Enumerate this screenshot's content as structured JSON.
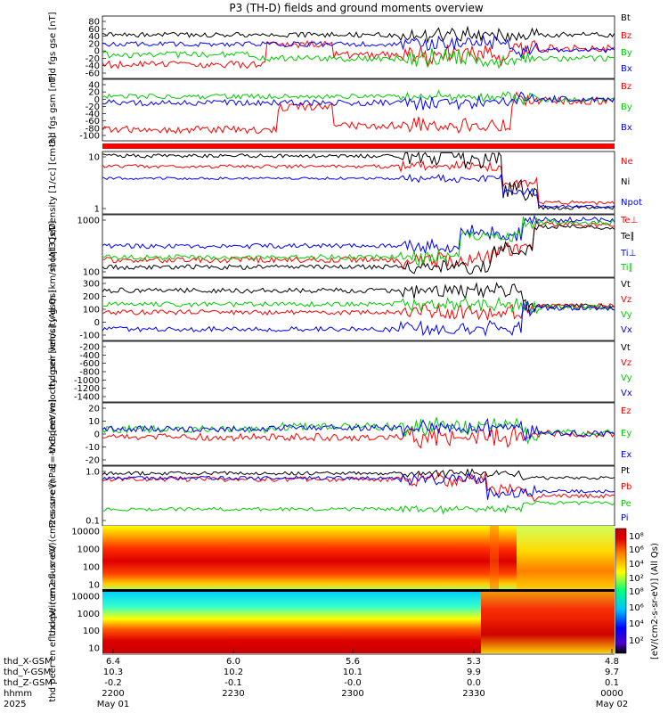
{
  "title": "P3 (TH-D) fields and ground moments overview",
  "chart_data": [
    {
      "id": "fgs_gse",
      "type": "line",
      "ylabel": "thd fgs gse [nT]",
      "ylim": [
        -65,
        85
      ],
      "yticks": [
        "80",
        "60",
        "40",
        "20",
        "0",
        "-20",
        "-40",
        "-60"
      ],
      "series": [
        {
          "name": "Bt",
          "color": "#000000"
        },
        {
          "name": "Bz",
          "color": "#ff0000"
        },
        {
          "name": "By",
          "color": "#00cc00"
        },
        {
          "name": "Bx",
          "color": "#0000ff"
        }
      ]
    },
    {
      "id": "fgs_gsm",
      "type": "line",
      "ylabel": "thd fgs gsm [nT]",
      "ylim": [
        -115,
        45
      ],
      "yticks": [
        "40",
        "20",
        "0",
        "-20",
        "-40",
        "-60",
        "-80",
        "-100"
      ],
      "series": [
        {
          "name": "Bz",
          "color": "#ff0000"
        },
        {
          "name": "By",
          "color": "#00cc00"
        },
        {
          "name": "Bx",
          "color": "#0000ff"
        }
      ]
    },
    {
      "id": "density",
      "type": "line",
      "ylabel": "Density [1/cc] [cm-3]",
      "yscale": "log",
      "ylim": [
        0.25,
        35
      ],
      "yticks": [
        "10",
        "1"
      ],
      "series": [
        {
          "name": "Ne",
          "color": "#ff0000"
        },
        {
          "name": "Ni",
          "color": "#000000"
        },
        {
          "name": "Npot",
          "color": "#0000ff"
        }
      ]
    },
    {
      "id": "temperature",
      "type": "line",
      "ylabel": "moqt3 [eV]",
      "yscale": "log",
      "ylim": [
        60,
        4000
      ],
      "yticks": [
        "1000",
        "100"
      ],
      "series": [
        {
          "name": "Te⊥",
          "color": "#ff0000"
        },
        {
          "name": "Te∥",
          "color": "#000000"
        },
        {
          "name": "Ti⊥",
          "color": "#0000ff"
        },
        {
          "name": "Ti∥",
          "color": "#00cc00"
        }
      ]
    },
    {
      "id": "peir_vel",
      "type": "line",
      "ylabel": "thd peir velocity gsm [km/s] (All Qs)",
      "ylim": [
        -160,
        320
      ],
      "yticks": [
        "300",
        "200",
        "100",
        "0",
        "-100"
      ],
      "series": [
        {
          "name": "Vt",
          "color": "#000000"
        },
        {
          "name": "Vz",
          "color": "#ff0000"
        },
        {
          "name": "Vy",
          "color": "#00cc00"
        },
        {
          "name": "Vx",
          "color": "#0000ff"
        }
      ]
    },
    {
      "id": "peer_vel",
      "type": "line",
      "ylabel": "thd peer velocity gsm [km/s] (All Qs)",
      "ylim": [
        -1480,
        -120
      ],
      "yticks": [
        "-200",
        "-400",
        "-600",
        "-800",
        "-1000",
        "-1200",
        "-1400"
      ],
      "series": [
        {
          "name": "Vt",
          "color": "#000000"
        },
        {
          "name": "Vz",
          "color": "#ff0000"
        },
        {
          "name": "Vy",
          "color": "#00cc00"
        },
        {
          "name": "Vx",
          "color": "#0000ff"
        }
      ]
    },
    {
      "id": "efield",
      "type": "line",
      "ylabel": "E=-VxB [mV/m]",
      "ylim": [
        -24,
        24
      ],
      "yticks": [
        "20",
        "10",
        "0",
        "-10",
        "-20"
      ],
      "series": [
        {
          "name": "Ez",
          "color": "#ff0000"
        },
        {
          "name": "Ey",
          "color": "#00cc00"
        },
        {
          "name": "Ex",
          "color": "#0000ff"
        }
      ]
    },
    {
      "id": "pressure",
      "type": "line",
      "ylabel": "Pressure [nPa]",
      "yscale": "log",
      "ylim": [
        0.03,
        2.2
      ],
      "yticks": [
        "1.0",
        "0.1"
      ],
      "series": [
        {
          "name": "Pt",
          "color": "#000000"
        },
        {
          "name": "Pb",
          "color": "#ff0000"
        },
        {
          "name": "Pe",
          "color": "#00cc00"
        },
        {
          "name": "Pi",
          "color": "#0000ff"
        }
      ]
    },
    {
      "id": "peir_spec",
      "type": "heatmap",
      "ylabel": "thd peir en eflux eV/ (cm2-s- sr-eV)",
      "yscale": "log",
      "ylim": [
        7,
        20000
      ],
      "yticks": [
        "10000",
        "1000",
        "100",
        "10"
      ]
    },
    {
      "id": "peer_spec",
      "type": "heatmap",
      "ylabel": "thd peer en eflux eV/ (cm2-s- sr-eV)",
      "yscale": "log",
      "ylim": [
        7,
        20000
      ],
      "yticks": [
        "10000",
        "1000",
        "100",
        "10"
      ]
    }
  ],
  "colorbar": {
    "label": "[eV/(cm2-s-sr-eV)] (All Qs)",
    "ticks": [
      "10^8",
      "10^6",
      "10^4",
      "10^2"
    ]
  },
  "xaxis": {
    "rows": [
      {
        "label": "thd_X-GSM",
        "values": [
          "6.4",
          "6.0",
          "5.6",
          "5.3",
          "4.8"
        ]
      },
      {
        "label": "thd_Y-GSM",
        "values": [
          "10.3",
          "10.2",
          "10.1",
          "9.9",
          "9.7"
        ]
      },
      {
        "label": "thd_Z-GSM",
        "values": [
          "-0.2",
          "-0.1",
          "-0.0",
          "0.0",
          "0.1"
        ]
      },
      {
        "label": "hhmm",
        "values": [
          "2200",
          "2230",
          "2300",
          "2330",
          "0000"
        ]
      },
      {
        "label": "2025",
        "values": [
          "May 01",
          "",
          "",
          "",
          "May 02"
        ]
      }
    ]
  }
}
